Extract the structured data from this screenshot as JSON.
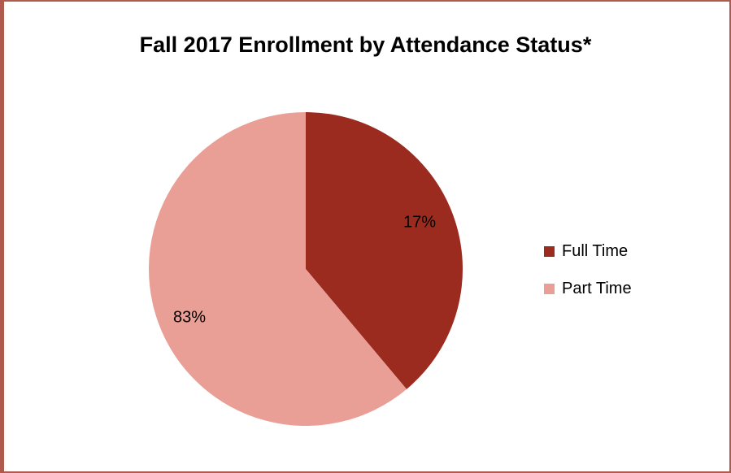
{
  "chart_data": {
    "type": "pie",
    "title": "Fall 2017 Enrollment by Attendance Status*",
    "slices": [
      {
        "name": "Full Time",
        "value": 17,
        "label": "17%",
        "color": "#9b2b1f"
      },
      {
        "name": "Part Time",
        "value": 83,
        "label": "83%",
        "color": "#e99f95"
      }
    ],
    "legend_position": "right"
  }
}
